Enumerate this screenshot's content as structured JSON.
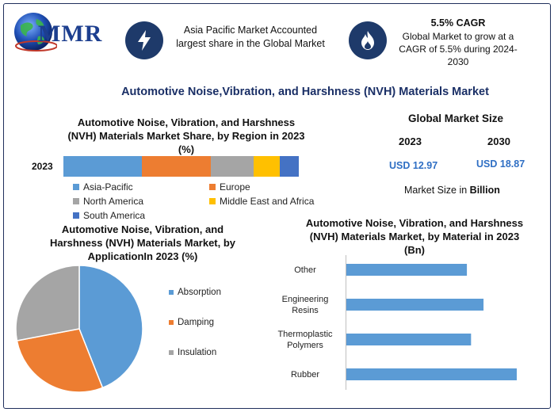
{
  "brand": {
    "logo_text": "MMR",
    "globe_icon": "globe-icon"
  },
  "header": {
    "callout1": {
      "icon": "lightning-bolt-icon",
      "text": "Asia Pacific Market Accounted largest share in the Global Market"
    },
    "callout2": {
      "icon": "flame-icon",
      "title": "5.5% CAGR",
      "text": "Global Market to grow at a CAGR of 5.5% during 2024-2030"
    }
  },
  "main_title": "Automotive Noise,Vibration, and Harshness (NVH) Materials Market",
  "market_size": {
    "title": "Global Market Size",
    "year1": "2023",
    "value1": "USD 12.97",
    "year2": "2030",
    "value2": "USD 18.87",
    "note_prefix": "Market Size in ",
    "note_unit": "Billion"
  },
  "colors": {
    "blue": "#5b9bd5",
    "orange": "#ed7d31",
    "gray": "#a5a5a5",
    "yellow": "#ffc000",
    "darkblue": "#4472c4",
    "navy": "#1e3a6a"
  },
  "chart_data": [
    {
      "type": "bar",
      "orientation": "horizontal-stacked",
      "title": "Automotive Noise, Vibration, and Harshness (NVH) Materials Market Share, by Region in 2023 (%)",
      "categories": [
        "2023"
      ],
      "series": [
        {
          "name": "Asia-Pacific",
          "values": [
            33
          ],
          "color": "#5b9bd5"
        },
        {
          "name": "Europe",
          "values": [
            29
          ],
          "color": "#ed7d31"
        },
        {
          "name": "North America",
          "values": [
            18
          ],
          "color": "#a5a5a5"
        },
        {
          "name": "Middle East and Africa",
          "values": [
            11
          ],
          "color": "#ffc000"
        },
        {
          "name": "South America",
          "values": [
            8
          ],
          "color": "#4472c4"
        }
      ],
      "legend_position": "bottom"
    },
    {
      "type": "pie",
      "title": "Automotive Noise, Vibration, and Harshness (NVH) Materials Market, by ApplicationIn 2023 (%)",
      "labels": [
        "Absorption",
        "Damping",
        "Insulation"
      ],
      "values": [
        44,
        28,
        28
      ],
      "colors": [
        "#5b9bd5",
        "#ed7d31",
        "#a5a5a5"
      ],
      "legend_position": "right"
    },
    {
      "type": "bar",
      "orientation": "horizontal",
      "title": "Automotive Noise, Vibration, and Harshness (NVH) Materials Market, by Material in 2023 (Bn)",
      "categories": [
        "Other",
        "Engineering Resins",
        "Thermoplastic Polymers",
        "Rubber"
      ],
      "category_lines": [
        [
          "Other"
        ],
        [
          "Engineering",
          "Resins"
        ],
        [
          "Thermoplastic",
          "Polymers"
        ],
        [
          "Rubber"
        ]
      ],
      "values": [
        2.9,
        3.3,
        3.0,
        4.1
      ],
      "xlim": [
        0,
        4.5
      ],
      "color": "#5b9bd5"
    }
  ]
}
